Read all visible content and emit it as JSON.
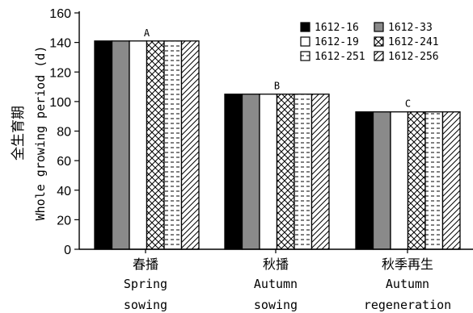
{
  "chart_data": {
    "type": "bar",
    "categories": [
      {
        "cn": "春播",
        "en1": "Spring",
        "en2": "sowing"
      },
      {
        "cn": "秋播",
        "en1": "Autumn",
        "en2": "sowing"
      },
      {
        "cn": "秋季再生",
        "en1": "Autumn",
        "en2": "regeneration"
      }
    ],
    "series": [
      {
        "name": "1612-16",
        "pattern": "solid-black",
        "values": [
          141,
          105,
          93
        ]
      },
      {
        "name": "1612-33",
        "pattern": "solid-gray",
        "values": [
          141,
          105,
          93
        ]
      },
      {
        "name": "1612-19",
        "pattern": "white",
        "values": [
          141,
          105,
          93
        ]
      },
      {
        "name": "1612-241",
        "pattern": "crosshatch",
        "values": [
          141,
          105,
          93
        ]
      },
      {
        "name": "1612-251",
        "pattern": "dashes",
        "values": [
          141,
          105,
          93
        ]
      },
      {
        "name": "1612-256",
        "pattern": "diagonal",
        "values": [
          141,
          105,
          93
        ]
      }
    ],
    "annotations": [
      "A",
      "B",
      "C"
    ],
    "ylabel_cn": "全生育期",
    "ylabel_en": "Whole growing period (d)",
    "ylim": [
      0,
      160
    ],
    "yticks": [
      0,
      20,
      40,
      60,
      80,
      100,
      120,
      140,
      160
    ],
    "legend_position": "top-right",
    "grid": false
  }
}
